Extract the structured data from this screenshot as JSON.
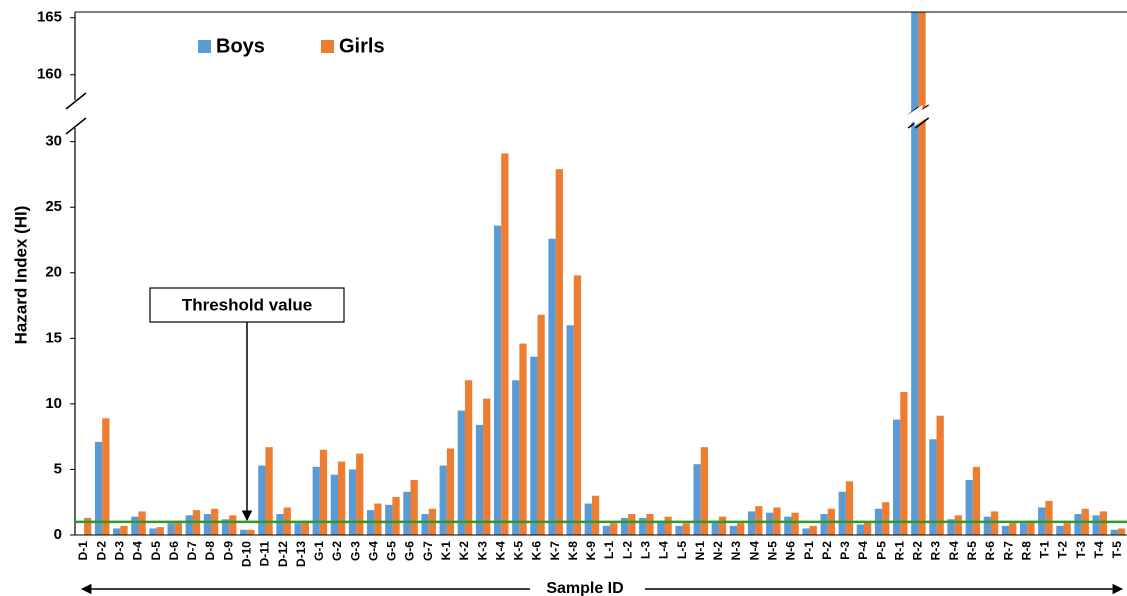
{
  "chart_data": {
    "type": "bar",
    "y_label": "Hazard Index (HI)",
    "x_label": "Sample ID",
    "categories": [
      "D-1",
      "D-2",
      "D-3",
      "D-4",
      "D-5",
      "D-6",
      "D-7",
      "D-8",
      "D-9",
      "D-10",
      "D-11",
      "D-12",
      "D-13",
      "G-1",
      "G-2",
      "G-3",
      "G-4",
      "G-5",
      "G-6",
      "G-7",
      "K-1",
      "K-2",
      "K-3",
      "K-4",
      "K-5",
      "K-6",
      "K-7",
      "K-8",
      "K-9",
      "L-1",
      "L-2",
      "L-3",
      "L-4",
      "L-5",
      "N-1",
      "N-2",
      "N-3",
      "N-4",
      "N-5",
      "N-6",
      "P-1",
      "P-2",
      "P-3",
      "P-4",
      "P-5",
      "R-1",
      "R-2",
      "R-3",
      "R-4",
      "R-5",
      "R-6",
      "R-7",
      "R-8",
      "T-1",
      "T-2",
      "T-3",
      "T-4",
      "T-5"
    ],
    "series": [
      {
        "name": "Boys",
        "color": "#5b9bd5",
        "values": [
          0,
          7.1,
          0.5,
          1.4,
          0.5,
          0.9,
          1.5,
          1.6,
          1.2,
          0.4,
          5.3,
          1.6,
          0.9,
          5.2,
          4.6,
          5.0,
          1.9,
          2.3,
          3.3,
          1.6,
          5.3,
          9.5,
          8.4,
          23.6,
          11.8,
          13.6,
          22.6,
          16.0,
          2.4,
          0.7,
          1.3,
          1.3,
          1.1,
          0.7,
          5.4,
          1.1,
          0.7,
          1.8,
          1.7,
          1.4,
          0.5,
          1.6,
          3.3,
          0.8,
          2.0,
          8.8,
          166,
          7.3,
          1.2,
          4.2,
          1.4,
          0.7,
          0.9,
          2.1,
          0.7,
          1.6,
          1.5,
          0.4
        ]
      },
      {
        "name": "Girls",
        "color": "#ed7d31",
        "values": [
          1.3,
          8.9,
          0.7,
          1.8,
          0.6,
          1.1,
          1.9,
          2.0,
          1.5,
          0.4,
          6.7,
          2.1,
          1.1,
          6.5,
          5.6,
          6.2,
          2.4,
          2.9,
          4.2,
          2.0,
          6.6,
          11.8,
          10.4,
          29.1,
          14.6,
          16.8,
          27.9,
          19.8,
          3.0,
          0.9,
          1.6,
          1.6,
          1.4,
          0.9,
          6.7,
          1.4,
          0.9,
          2.2,
          2.1,
          1.7,
          0.7,
          2.0,
          4.1,
          1.0,
          2.5,
          10.9,
          166,
          9.1,
          1.5,
          5.2,
          1.8,
          0.9,
          1.1,
          2.6,
          0.9,
          2.0,
          1.8,
          0.5
        ]
      }
    ],
    "ylim": [
      0,
      165.5
    ],
    "ybreak": [
      31.5,
      157
    ],
    "yticks": [
      0,
      5,
      10,
      15,
      20,
      25,
      30,
      160,
      165
    ],
    "threshold": 1,
    "threshold_color": "#2e9a2e",
    "threshold_label": "Threshold value",
    "legend": "upper left"
  }
}
